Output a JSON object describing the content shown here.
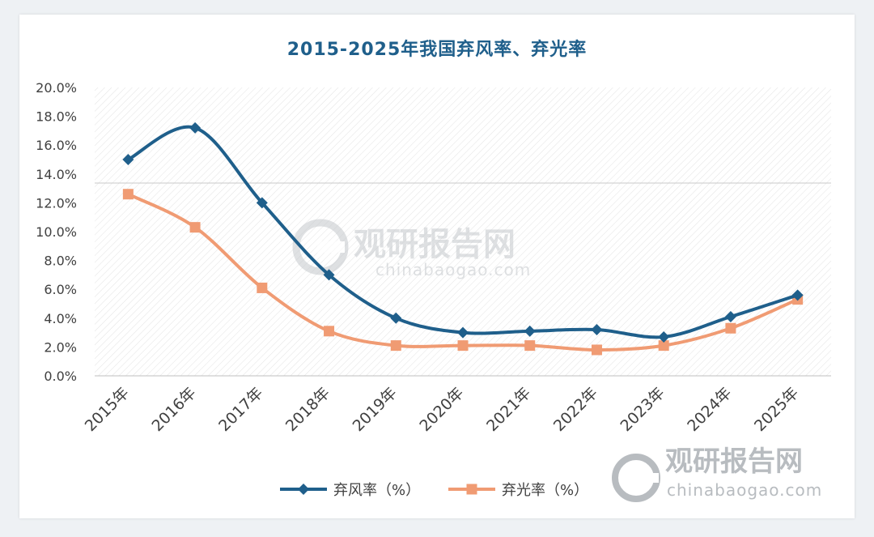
{
  "chart_data": {
    "type": "line",
    "title": "2015-2025年我国弃风率、弃光率",
    "categories": [
      "2015年",
      "2016年",
      "2017年",
      "2018年",
      "2019年",
      "2020年",
      "2021年",
      "2022年",
      "2023年",
      "2024年",
      "2025年"
    ],
    "series": [
      {
        "name": "弃风率（%）",
        "color": "#1f5f8b",
        "marker": "diamond",
        "values": [
          15.0,
          17.2,
          12.0,
          7.0,
          4.0,
          3.0,
          3.1,
          3.2,
          2.7,
          4.1,
          5.6
        ]
      },
      {
        "name": "弃光率（%）",
        "color": "#f09b73",
        "marker": "square",
        "values": [
          12.6,
          10.3,
          6.1,
          3.1,
          2.1,
          2.1,
          2.1,
          1.8,
          2.1,
          3.3,
          5.3
        ]
      }
    ],
    "yticks": [
      "0.0%",
      "2.0%",
      "4.0%",
      "6.0%",
      "8.0%",
      "10.0%",
      "12.0%",
      "14.0%",
      "16.0%",
      "18.0%",
      "20.0%"
    ],
    "ylim": [
      0,
      20
    ],
    "legend_position": "bottom",
    "grid": false
  },
  "watermark": {
    "brand": "观研报告网",
    "url": "chinabaogao.com"
  },
  "colors": {
    "title": "#1f5f8b",
    "axis_text": "#404040",
    "plot_pattern": "#d9d9d9",
    "watermark": "#c8ccd0"
  }
}
